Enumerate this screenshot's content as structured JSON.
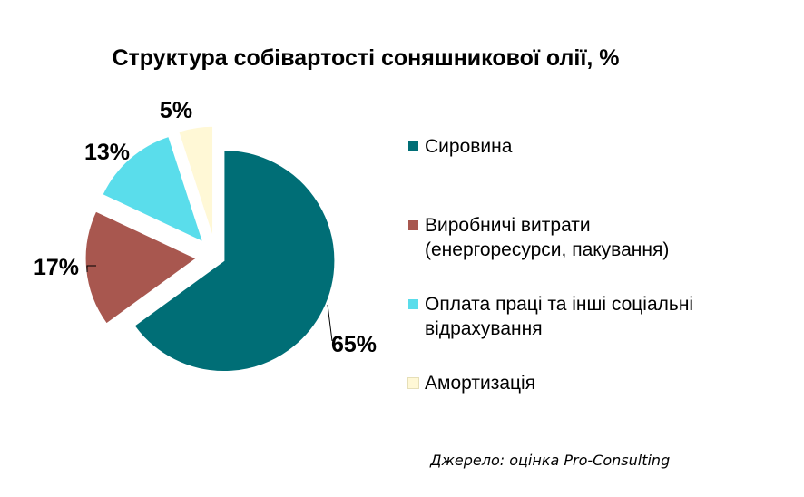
{
  "chart_data": {
    "type": "pie",
    "title": "Структура собівартості соняшникової олії, %",
    "categories": [
      "Сировина",
      "Виробничі витрати (енергоресурси, пакування)",
      "Оплата праці та інші соціальні відрахування",
      "Амортизація"
    ],
    "values": [
      65,
      17,
      13,
      5
    ],
    "data_labels": [
      "65%",
      "17%",
      "13%",
      "5%"
    ],
    "colors": [
      "#006E76",
      "#A8574F",
      "#5ADDEB",
      "#FFF8D6"
    ],
    "legend_position": "right",
    "exploded": true
  },
  "legend": {
    "items": [
      {
        "label": "Сировина"
      },
      {
        "label": "Виробничі витрати (енергоресурси, пакування)"
      },
      {
        "label": "Оплата праці та інші соціальні відрахування"
      },
      {
        "label": "Амортизація"
      }
    ]
  },
  "source": "Джерело: оцінка Pro-Consulting"
}
